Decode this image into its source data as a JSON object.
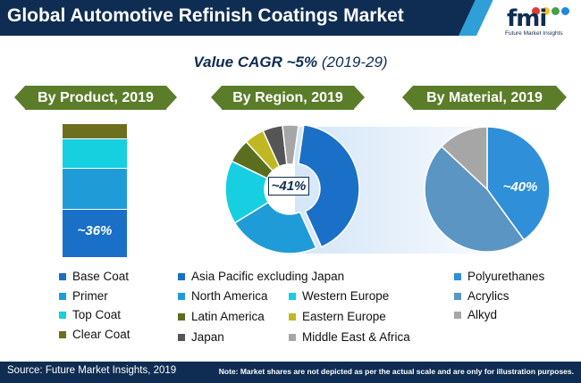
{
  "header": {
    "title": "Global Automotive Refinish Coatings Market",
    "logo_text": "fmi",
    "logo_subtext": "Future Market Insights"
  },
  "subtitle": {
    "main": "Value CAGR ~5%",
    "period": "(2019-29)"
  },
  "panels": {
    "product": "By Product, 2019",
    "region": "By Region, 2019",
    "material": "By Material, 2019"
  },
  "colors": {
    "navy": "#0f2d52",
    "banner_green": "#5b7d2a",
    "accent_cyan": "#2f9fd8"
  },
  "chart_data": [
    {
      "type": "bar",
      "title": "By Product, 2019",
      "stacked": true,
      "series": [
        {
          "name": "Base Coat",
          "value": 36,
          "color": "#1a6fc7"
        },
        {
          "name": "Primer",
          "value": 31,
          "color": "#1f9cd8"
        },
        {
          "name": "Top Coat",
          "value": 22,
          "color": "#16cfe0"
        },
        {
          "name": "Clear Coat",
          "value": 11,
          "color": "#6e6e1f"
        }
      ],
      "callout": "~36%"
    },
    {
      "type": "pie",
      "title": "By Region, 2019",
      "donut": true,
      "slices": [
        {
          "name": "Asia Pacific excluding Japan",
          "value": 41,
          "color": "#1a6fc7"
        },
        {
          "name": "North America",
          "value": 23,
          "color": "#1f9cd8"
        },
        {
          "name": "Western Europe",
          "value": 16,
          "color": "#16cfe0"
        },
        {
          "name": "Latin America",
          "value": 6,
          "color": "#5b6e1f"
        },
        {
          "name": "Eastern Europe",
          "value": 5,
          "color": "#c0b820"
        },
        {
          "name": "Japan",
          "value": 5,
          "color": "#555555"
        },
        {
          "name": "Middle East & Africa",
          "value": 4,
          "color": "#a6a6a6"
        }
      ],
      "callout": "~41%"
    },
    {
      "type": "pie",
      "title": "By Material, 2019",
      "slices": [
        {
          "name": "Polyurethanes",
          "value": 40,
          "color": "#2f8fd8"
        },
        {
          "name": "Acrylics",
          "value": 47,
          "color": "#5a95c4"
        },
        {
          "name": "Alkyd",
          "value": 13,
          "color": "#a6a6a6"
        }
      ],
      "callout": "~40%"
    }
  ],
  "footer": {
    "source": "Source: Future Market Insights, 2019",
    "note": "Note: Market shares are not depicted as per the actual scale and are only for illustration purposes."
  }
}
